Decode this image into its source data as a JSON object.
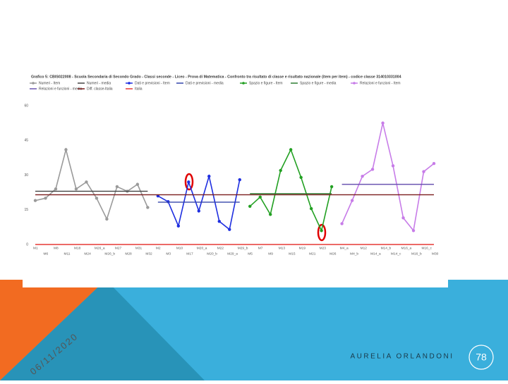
{
  "chart_data": {
    "type": "line",
    "title": "Grafico 5: CBIS022008 - Scuola Secondaria di Secondo Grado - Classi seconde - Liceo - Prova di Matematica - Confronto tra risultato di classe e risultato nazionale (item per item) - codice classe 314010331004",
    "categories": [
      "M1",
      "M6",
      "M8",
      "M11",
      "M18",
      "M24",
      "M26_a",
      "M26_b",
      "M27",
      "M28",
      "M31",
      "M32",
      "M2",
      "M3",
      "M10",
      "M17",
      "M20_a",
      "M20_b",
      "M22",
      "M29_a",
      "M29_b",
      "M5",
      "M7",
      "M9",
      "M13",
      "M15",
      "M19",
      "M21",
      "M23",
      "M26",
      "M4_a",
      "M4_b",
      "M12",
      "M14_a",
      "M14_b",
      "M14_c",
      "M16_a",
      "M16_b",
      "M16_c",
      "M30"
    ],
    "ylim": [
      0,
      60
    ],
    "yticks": [
      0,
      15,
      30,
      45,
      60
    ],
    "grid": false,
    "series": [
      {
        "name": "Numeri - Item",
        "color": "#9a9a9a",
        "marker": true,
        "values": [
          19,
          20,
          24,
          41,
          24,
          27,
          20,
          11,
          25,
          23,
          26,
          16,
          null,
          null,
          null,
          null,
          null,
          null,
          null,
          null,
          null,
          null,
          null,
          null,
          null,
          null,
          null,
          null,
          null,
          null,
          null,
          null,
          null,
          null,
          null,
          null,
          null,
          null,
          null,
          null
        ]
      },
      {
        "name": "Numeri - media",
        "color": "#444444",
        "marker": false,
        "values": [
          23,
          23,
          23,
          23,
          23,
          23,
          23,
          23,
          23,
          23,
          23,
          23,
          null,
          null,
          null,
          null,
          null,
          null,
          null,
          null,
          null,
          null,
          null,
          null,
          null,
          null,
          null,
          null,
          null,
          null,
          null,
          null,
          null,
          null,
          null,
          null,
          null,
          null,
          null,
          null
        ]
      },
      {
        "name": "Dati e previsioni - Item",
        "color": "#1f2fe0",
        "marker": true,
        "values": [
          null,
          null,
          null,
          null,
          null,
          null,
          null,
          null,
          null,
          null,
          null,
          null,
          21,
          18.5,
          8,
          27,
          14.5,
          29.5,
          10,
          6.5,
          28,
          null,
          null,
          null,
          null,
          null,
          null,
          null,
          null,
          null,
          null,
          null,
          null,
          null,
          null,
          null,
          null,
          null,
          null,
          null
        ]
      },
      {
        "name": "Dati e previsioni - media",
        "color": "#3344aa",
        "marker": false,
        "values": [
          null,
          null,
          null,
          null,
          null,
          null,
          null,
          null,
          null,
          null,
          null,
          null,
          18.3,
          18.3,
          18.3,
          18.3,
          18.3,
          18.3,
          18.3,
          18.3,
          18.3,
          null,
          null,
          null,
          null,
          null,
          null,
          null,
          null,
          null,
          null,
          null,
          null,
          null,
          null,
          null,
          null,
          null,
          null,
          null
        ]
      },
      {
        "name": "Spazio e figure - Item",
        "color": "#22a022",
        "marker": true,
        "values": [
          null,
          null,
          null,
          null,
          null,
          null,
          null,
          null,
          null,
          null,
          null,
          null,
          null,
          null,
          null,
          null,
          null,
          null,
          null,
          null,
          null,
          16.5,
          20.5,
          13,
          32,
          41,
          29,
          15.5,
          6,
          25,
          null,
          null,
          null,
          null,
          null,
          null,
          null,
          null,
          null,
          null
        ]
      },
      {
        "name": "Spazio e figure - media",
        "color": "#2e7d32",
        "marker": false,
        "values": [
          null,
          null,
          null,
          null,
          null,
          null,
          null,
          null,
          null,
          null,
          null,
          null,
          null,
          null,
          null,
          null,
          null,
          null,
          null,
          null,
          null,
          22,
          22,
          22,
          22,
          22,
          22,
          22,
          22,
          22,
          null,
          null,
          null,
          null,
          null,
          null,
          null,
          null,
          null,
          null
        ]
      },
      {
        "name": "Relazioni e funzioni - Item",
        "color": "#c77ce8",
        "marker": true,
        "values": [
          null,
          null,
          null,
          null,
          null,
          null,
          null,
          null,
          null,
          null,
          null,
          null,
          null,
          null,
          null,
          null,
          null,
          null,
          null,
          null,
          null,
          null,
          null,
          null,
          null,
          null,
          null,
          null,
          null,
          null,
          9,
          19,
          29.5,
          32.5,
          52.5,
          34,
          11.5,
          6,
          31.5,
          35
        ]
      },
      {
        "name": "Relazioni e funzioni - media",
        "color": "#6a55b0",
        "marker": false,
        "values": [
          null,
          null,
          null,
          null,
          null,
          null,
          null,
          null,
          null,
          null,
          null,
          null,
          null,
          null,
          null,
          null,
          null,
          null,
          null,
          null,
          null,
          null,
          null,
          null,
          null,
          null,
          null,
          null,
          null,
          null,
          26,
          26,
          26,
          26,
          26,
          26,
          26,
          26,
          26,
          26
        ]
      },
      {
        "name": "Diff. classe-Italia",
        "color": "#7b1c1c",
        "marker": false,
        "values": [
          21.5,
          21.5,
          21.5,
          21.5,
          21.5,
          21.5,
          21.5,
          21.5,
          21.5,
          21.5,
          21.5,
          21.5,
          21.5,
          21.5,
          21.5,
          21.5,
          21.5,
          21.5,
          21.5,
          21.5,
          21.5,
          21.5,
          21.5,
          21.5,
          21.5,
          21.5,
          21.5,
          21.5,
          21.5,
          21.5,
          21.5,
          21.5,
          21.5,
          21.5,
          21.5,
          21.5,
          21.5,
          21.5,
          21.5,
          21.5
        ]
      },
      {
        "name": "Italia",
        "color": "#e53935",
        "marker": false,
        "values": [
          0,
          0,
          0,
          0,
          0,
          0,
          0,
          0,
          0,
          0,
          0,
          0,
          0,
          0,
          0,
          0,
          0,
          0,
          0,
          0,
          0,
          0,
          0,
          0,
          0,
          0,
          0,
          0,
          0,
          0,
          0,
          0,
          0,
          0,
          0,
          0,
          0,
          0,
          0,
          0
        ]
      }
    ]
  },
  "slide": {
    "date": "06/11/2020",
    "author": "AURELIA ORLANDONI",
    "page": "78"
  }
}
